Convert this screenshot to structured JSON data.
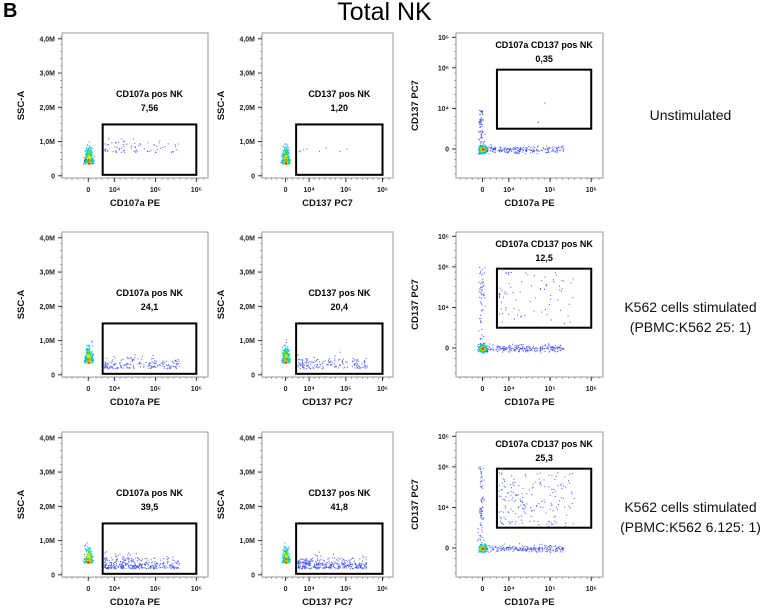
{
  "figure": {
    "panel_letter": "B",
    "title": "Total NK",
    "conditions": [
      {
        "lines": [
          "Unstimulated"
        ]
      },
      {
        "lines": [
          "K562 cells stimulated",
          "(PBMC:K562 25: 1)"
        ]
      },
      {
        "lines": [
          "K562 cells stimulated",
          "(PBMC:K562 6.125: 1)"
        ]
      }
    ]
  },
  "chart_data": {
    "type": "scatter",
    "grid": false,
    "point_colors": {
      "sparse": "#2a3cff",
      "medium": "#00c8ff",
      "dense": "#33dd33",
      "denser": "#f5e000",
      "densest": "#ff2a00"
    },
    "axis_types": {
      "SSC-A": {
        "scale": "linear",
        "range": [
          0,
          4200000
        ],
        "ticks": [
          0,
          1000000,
          2000000,
          3000000,
          4000000
        ],
        "tick_labels": [
          "0",
          "1,0M",
          "2,0M",
          "3,0M",
          "4,0M"
        ]
      },
      "fluor": {
        "scale": "logicle",
        "range": [
          -3000,
          1500000
        ],
        "ticks": [
          0,
          10000,
          100000,
          1000000
        ],
        "tick_labels": [
          "0",
          "10⁴",
          "10⁵",
          "10⁶"
        ]
      }
    },
    "rows": [
      {
        "condition": "Unstimulated",
        "plots": [
          {
            "xlabel": "CD107a PE",
            "ylabel": "SSC-A",
            "x_axis": "fluor",
            "y_axis": "SSC-A",
            "gate_label": "CD107a pos NK",
            "gate_value": "7,56",
            "gate": {
              "x": [
                3000,
                1000000
              ],
              "y": [
                0,
                1500000
              ]
            }
          },
          {
            "xlabel": "CD137 PC7",
            "ylabel": "SSC-A",
            "x_axis": "fluor",
            "y_axis": "SSC-A",
            "gate_label": "CD137 pos NK",
            "gate_value": "1,20",
            "gate": {
              "x": [
                2000,
                1000000
              ],
              "y": [
                0,
                1500000
              ]
            }
          },
          {
            "xlabel": "CD107a PE",
            "ylabel": "CD137 PC7",
            "x_axis": "fluor",
            "y_axis": "fluor",
            "gate_label": "CD107a CD137 pos NK",
            "gate_value": "0,35",
            "gate": {
              "x": [
                3000,
                1000000
              ],
              "y": [
                2500,
                90000
              ]
            }
          }
        ]
      },
      {
        "condition": "K562 cells stimulated (PBMC:K562 25: 1)",
        "plots": [
          {
            "xlabel": "CD107a PE",
            "ylabel": "SSC-A",
            "x_axis": "fluor",
            "y_axis": "SSC-A",
            "gate_label": "CD107a pos NK",
            "gate_value": "24,1",
            "gate": {
              "x": [
                3000,
                1000000
              ],
              "y": [
                0,
                1500000
              ]
            }
          },
          {
            "xlabel": "CD137 PC7",
            "ylabel": "SSC-A",
            "x_axis": "fluor",
            "y_axis": "SSC-A",
            "gate_label": "CD137 pos NK",
            "gate_value": "20,4",
            "gate": {
              "x": [
                2000,
                1000000
              ],
              "y": [
                0,
                1500000
              ]
            }
          },
          {
            "xlabel": "CD107a PE",
            "ylabel": "CD137 PC7",
            "x_axis": "fluor",
            "y_axis": "fluor",
            "gate_label": "CD107a CD137 pos NK",
            "gate_value": "12,5",
            "gate": {
              "x": [
                3000,
                1000000
              ],
              "y": [
                2500,
                90000
              ]
            }
          }
        ]
      },
      {
        "condition": "K562 cells stimulated (PBMC:K562 6.125: 1)",
        "plots": [
          {
            "xlabel": "CD107a PE",
            "ylabel": "SSC-A",
            "x_axis": "fluor",
            "y_axis": "SSC-A",
            "gate_label": "CD107a pos NK",
            "gate_value": "39,5",
            "gate": {
              "x": [
                3000,
                1000000
              ],
              "y": [
                0,
                1500000
              ]
            }
          },
          {
            "xlabel": "CD137 PC7",
            "ylabel": "SSC-A",
            "x_axis": "fluor",
            "y_axis": "SSC-A",
            "gate_label": "CD137 pos NK",
            "gate_value": "41,8",
            "gate": {
              "x": [
                2000,
                1000000
              ],
              "y": [
                0,
                1500000
              ]
            }
          },
          {
            "xlabel": "CD107a PE",
            "ylabel": "CD137 PC7",
            "x_axis": "fluor",
            "y_axis": "fluor",
            "gate_label": "CD107a CD137 pos NK",
            "gate_value": "25,3",
            "gate": {
              "x": [
                3000,
                1000000
              ],
              "y": [
                2500,
                90000
              ]
            }
          }
        ]
      }
    ]
  }
}
